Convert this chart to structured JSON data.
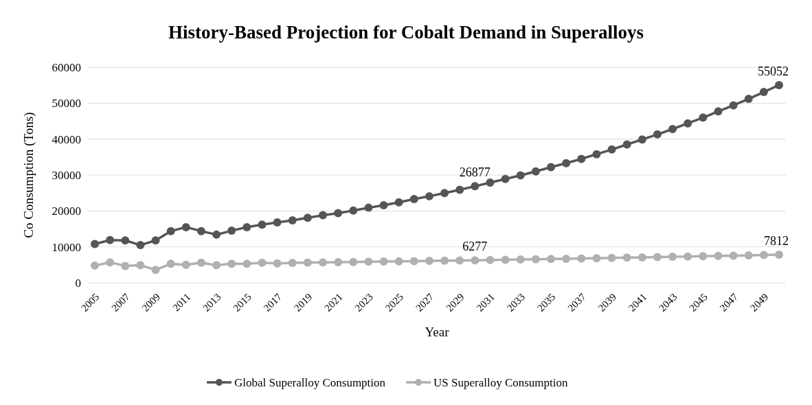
{
  "chart_data": {
    "type": "line",
    "title": "History-Based Projection for Cobalt Demand in Superalloys",
    "xlabel": "Year",
    "ylabel": "Co Consumption (Tons)",
    "categories": [
      "2005",
      null,
      "2007",
      null,
      "2009",
      null,
      "2011",
      null,
      "2013",
      null,
      "2015",
      null,
      "2017",
      null,
      "2019",
      null,
      "2021",
      null,
      "2023",
      null,
      "2025",
      null,
      "2027",
      null,
      "2029",
      null,
      "2031",
      null,
      "2033",
      null,
      "2035",
      null,
      "2037",
      null,
      "2039",
      null,
      "2041",
      null,
      "2043",
      null,
      "2045",
      null,
      "2047",
      null,
      "2049",
      null
    ],
    "series": [
      {
        "name": "Global Superalloy Consumption",
        "color": "#555555",
        "values": [
          10800,
          11900,
          11800,
          10500,
          11800,
          14400,
          15500,
          14400,
          13400,
          14500,
          15500,
          16200,
          16800,
          17400,
          18100,
          18800,
          19400,
          20100,
          20900,
          21600,
          22400,
          23300,
          24100,
          25000,
          25900,
          26877,
          27900,
          28900,
          29900,
          31000,
          32200,
          33300,
          34500,
          35800,
          37100,
          38500,
          39900,
          41300,
          42800,
          44400,
          46000,
          47700,
          49400,
          51200,
          53100,
          55052
        ],
        "value_labels": [
          null,
          null,
          null,
          null,
          null,
          null,
          null,
          null,
          null,
          null,
          null,
          null,
          null,
          null,
          null,
          null,
          null,
          null,
          null,
          null,
          null,
          null,
          null,
          null,
          null,
          "26877",
          null,
          null,
          null,
          null,
          null,
          null,
          null,
          null,
          null,
          null,
          null,
          null,
          null,
          null,
          null,
          null,
          null,
          null,
          null,
          "55052"
        ]
      },
      {
        "name": "US Superalloy Consumption",
        "color": "#b0b0b0",
        "values": [
          4800,
          5700,
          4700,
          4900,
          3600,
          5300,
          5000,
          5600,
          4900,
          5300,
          5300,
          5600,
          5400,
          5560,
          5620,
          5680,
          5740,
          5800,
          5860,
          5920,
          5980,
          6040,
          6100,
          6160,
          6220,
          6277,
          6350,
          6420,
          6490,
          6560,
          6630,
          6700,
          6780,
          6850,
          6930,
          7000,
          7080,
          7160,
          7240,
          7320,
          7400,
          7480,
          7560,
          7640,
          7730,
          7812
        ],
        "value_labels": [
          null,
          null,
          null,
          null,
          null,
          null,
          null,
          null,
          null,
          null,
          null,
          null,
          null,
          null,
          null,
          null,
          null,
          null,
          null,
          null,
          null,
          null,
          null,
          null,
          null,
          "6277",
          null,
          null,
          null,
          null,
          null,
          null,
          null,
          null,
          null,
          null,
          null,
          null,
          null,
          null,
          null,
          null,
          null,
          null,
          null,
          "7812"
        ]
      }
    ],
    "ylim": [
      0,
      60000
    ],
    "yticks": [
      0,
      10000,
      20000,
      30000,
      40000,
      50000,
      60000
    ],
    "grid": "y",
    "legend": "bottom",
    "marker": "circle",
    "line_style": "solid"
  }
}
